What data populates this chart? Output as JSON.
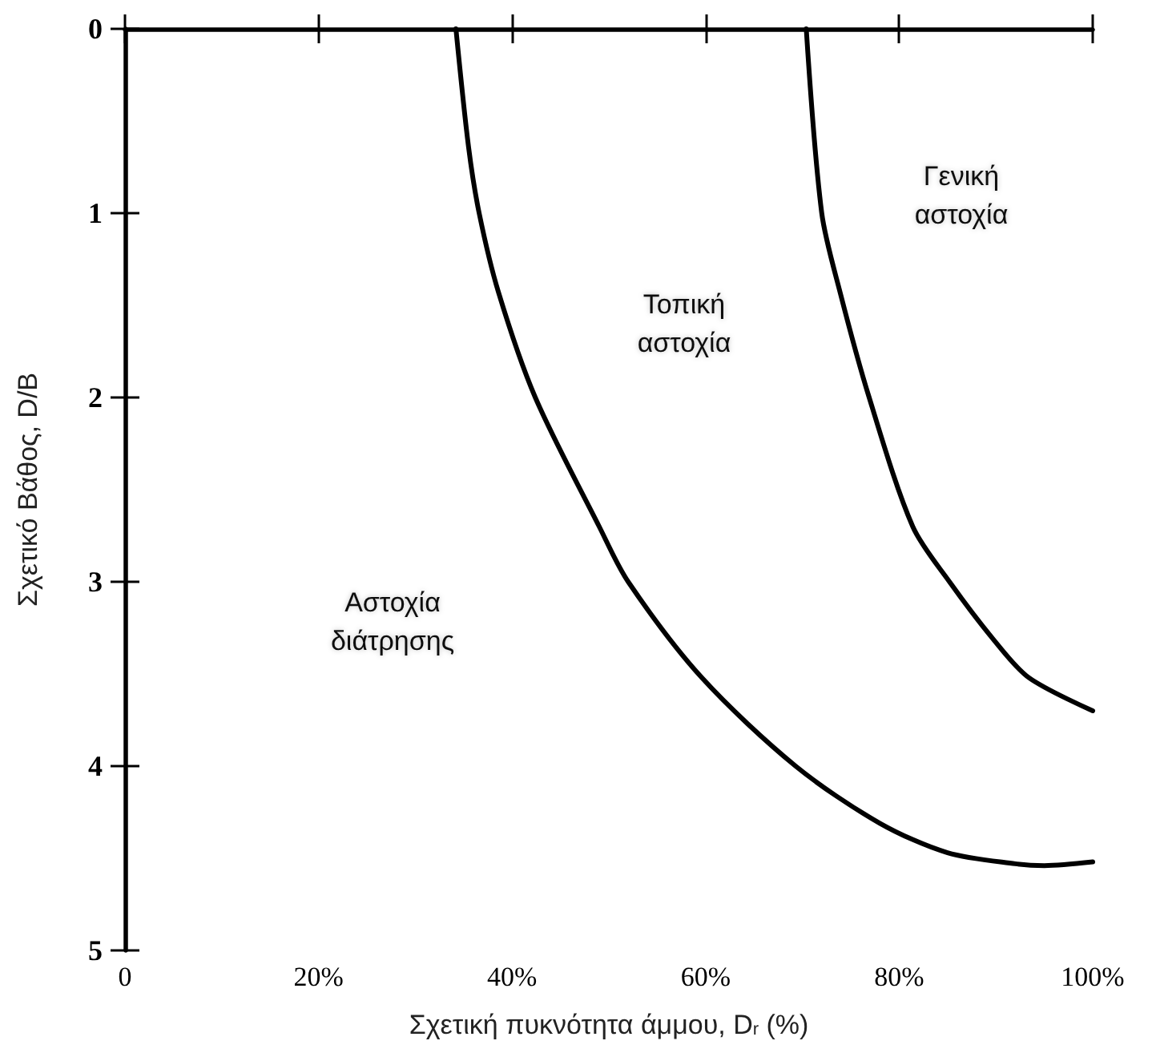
{
  "chart_data": {
    "type": "line",
    "xlabel": "Σχετική πυκνότητα άμμου, D$_{r}$ (%)",
    "ylabel": "Σχετικό Βάθος, D/B",
    "xlim": [
      0,
      100
    ],
    "xticks": [
      0,
      {
        "value": 20,
        "label": "20%"
      },
      {
        "value": 40,
        "label": "40%"
      },
      {
        "value": 60,
        "label": "60%"
      },
      {
        "value": 80,
        "label": "80%"
      },
      {
        "value": 100,
        "label": "100%"
      }
    ],
    "ylim": [
      5,
      0
    ],
    "yticks": [
      0,
      1,
      2,
      3,
      4,
      5
    ],
    "grid": false,
    "marker": "none",
    "line_style": "solid",
    "series": [
      {
        "color": "#000000",
        "x": [
          34.2,
          35.5,
          36.6,
          38.6,
          42.4,
          49.0,
          52.0,
          59.6,
          69.3,
          78.0,
          85.0,
          92.0,
          95.0,
          100.0
        ],
        "values": [
          0,
          0.64,
          1.0,
          1.43,
          2.0,
          2.7,
          3.0,
          3.52,
          4.0,
          4.31,
          4.47,
          4.53,
          4.54,
          4.52
        ]
      },
      {
        "color": "#000000",
        "x": [
          70.4,
          72.0,
          73.9,
          76.9,
          81.4,
          85.2,
          89.7,
          93.4,
          100.0
        ],
        "values": [
          0,
          1.0,
          1.43,
          2.0,
          2.7,
          3.0,
          3.31,
          3.52,
          3.7
        ]
      }
    ],
    "annotations": [
      "Γενική\nαστοχία",
      "Τοπική\nαστοχία",
      "Αστοχία\nδιάτρησης"
    ]
  }
}
